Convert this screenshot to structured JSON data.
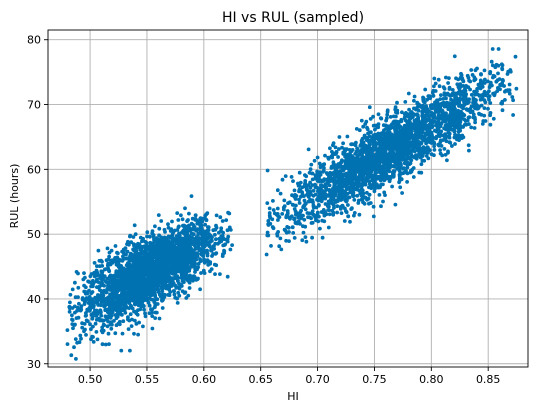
{
  "chart_data": {
    "type": "scatter",
    "title": "HI vs RUL (sampled)",
    "xlabel": "HI",
    "ylabel": "RUL (hours)",
    "xlim": [
      0.463,
      0.885
    ],
    "ylim": [
      29.5,
      81.5
    ],
    "xticks": [
      0.5,
      0.55,
      0.6,
      0.65,
      0.7,
      0.75,
      0.8,
      0.85
    ],
    "xtick_labels": [
      "0.50",
      "0.55",
      "0.60",
      "0.65",
      "0.70",
      "0.75",
      "0.80",
      "0.85"
    ],
    "yticks": [
      30,
      40,
      50,
      60,
      70,
      80
    ],
    "ytick_labels": [
      "30",
      "40",
      "50",
      "60",
      "70",
      "80"
    ],
    "grid": true,
    "point_color": "#0072b2",
    "series": [
      {
        "clusters": [
          {
            "x_range": [
              0.48,
              0.625
            ],
            "trend": {
              "x0": 0.49,
              "y0": 38.5,
              "x1": 0.62,
              "y1": 50.0
            },
            "spread": 2.6,
            "density": "high"
          },
          {
            "x_range": [
              0.655,
              0.875
            ],
            "trend": {
              "x0": 0.67,
              "y0": 53.0,
              "x1": 0.86,
              "y1": 73.0
            },
            "spread": 2.6,
            "density": "high"
          }
        ]
      }
    ]
  }
}
